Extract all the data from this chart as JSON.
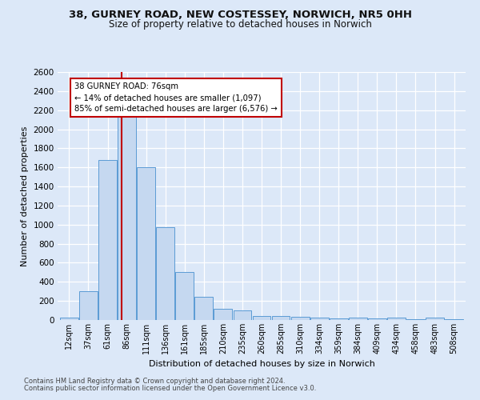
{
  "title_line1": "38, GURNEY ROAD, NEW COSTESSEY, NORWICH, NR5 0HH",
  "title_line2": "Size of property relative to detached houses in Norwich",
  "xlabel": "Distribution of detached houses by size in Norwich",
  "ylabel": "Number of detached properties",
  "bar_labels": [
    "12sqm",
    "37sqm",
    "61sqm",
    "86sqm",
    "111sqm",
    "136sqm",
    "161sqm",
    "185sqm",
    "210sqm",
    "235sqm",
    "260sqm",
    "285sqm",
    "310sqm",
    "334sqm",
    "359sqm",
    "384sqm",
    "409sqm",
    "434sqm",
    "458sqm",
    "483sqm",
    "508sqm"
  ],
  "bar_values": [
    25,
    300,
    1680,
    2150,
    1600,
    975,
    500,
    245,
    120,
    100,
    45,
    38,
    30,
    25,
    20,
    25,
    20,
    25,
    5,
    25,
    5
  ],
  "bar_color": "#c5d8f0",
  "bar_edge_color": "#5b9bd5",
  "background_color": "#dce8f8",
  "fig_background": "#dce8f8",
  "grid_color": "#ffffff",
  "vline_color": "#c00000",
  "vline_pos": 2.72,
  "annotation_text": "38 GURNEY ROAD: 76sqm\n← 14% of detached houses are smaller (1,097)\n85% of semi-detached houses are larger (6,576) →",
  "annotation_box_color": "#ffffff",
  "annotation_box_edge": "#c00000",
  "ylim": [
    0,
    2600
  ],
  "yticks": [
    0,
    200,
    400,
    600,
    800,
    1000,
    1200,
    1400,
    1600,
    1800,
    2000,
    2200,
    2400,
    2600
  ],
  "footnote1": "Contains HM Land Registry data © Crown copyright and database right 2024.",
  "footnote2": "Contains public sector information licensed under the Open Government Licence v3.0."
}
